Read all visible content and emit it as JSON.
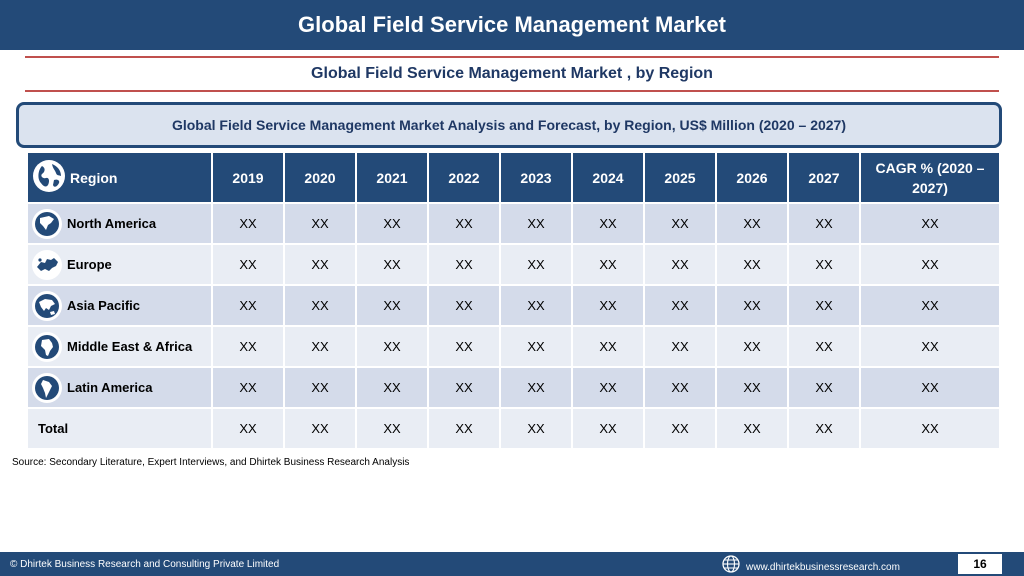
{
  "header": {
    "title": "Global Field Service Management Market"
  },
  "subtitle": "Global Field Service Management Market , by Region",
  "banner": "Global Field Service Management Market  Analysis and Forecast, by Region, US$ Million (2020 – 2027)",
  "table": {
    "region_header": "Region",
    "years": [
      "2019",
      "2020",
      "2021",
      "2022",
      "2023",
      "2024",
      "2025",
      "2026",
      "2027"
    ],
    "cagr_header_line1": "CAGR % (2020 –",
    "cagr_header_line2": "2027)",
    "rows": [
      {
        "region": "North America",
        "icon": "north-america-map-icon",
        "values": [
          "XX",
          "XX",
          "XX",
          "XX",
          "XX",
          "XX",
          "XX",
          "XX",
          "XX"
        ],
        "cagr": "XX"
      },
      {
        "region": "Europe",
        "icon": "europe-map-icon",
        "values": [
          "XX",
          "XX",
          "XX",
          "XX",
          "XX",
          "XX",
          "XX",
          "XX",
          "XX"
        ],
        "cagr": "XX"
      },
      {
        "region": "Asia Pacific",
        "icon": "asia-pacific-map-icon",
        "values": [
          "XX",
          "XX",
          "XX",
          "XX",
          "XX",
          "XX",
          "XX",
          "XX",
          "XX"
        ],
        "cagr": "XX"
      },
      {
        "region": "Middle East & Africa",
        "icon": "africa-map-icon",
        "values": [
          "XX",
          "XX",
          "XX",
          "XX",
          "XX",
          "XX",
          "XX",
          "XX",
          "XX"
        ],
        "cagr": "XX"
      },
      {
        "region": "Latin America",
        "icon": "latin-america-map-icon",
        "values": [
          "XX",
          "XX",
          "XX",
          "XX",
          "XX",
          "XX",
          "XX",
          "XX",
          "XX"
        ],
        "cagr": "XX"
      }
    ],
    "total": {
      "label": "Total",
      "values": [
        "XX",
        "XX",
        "XX",
        "XX",
        "XX",
        "XX",
        "XX",
        "XX",
        "XX"
      ],
      "cagr": "XX"
    }
  },
  "source": "Source: Secondary Literature, Expert Interviews, and Dhirtek Business Research Analysis",
  "footer": {
    "copyright": "© Dhirtek Business Research and Consulting Private Limited",
    "website": "www.dhirtekbusinessresearch.com",
    "page": "16"
  },
  "colors": {
    "primary": "#234a78",
    "accent_rule": "#c0504d",
    "row_dark": "#d4dbea",
    "row_light": "#e9edf4"
  }
}
